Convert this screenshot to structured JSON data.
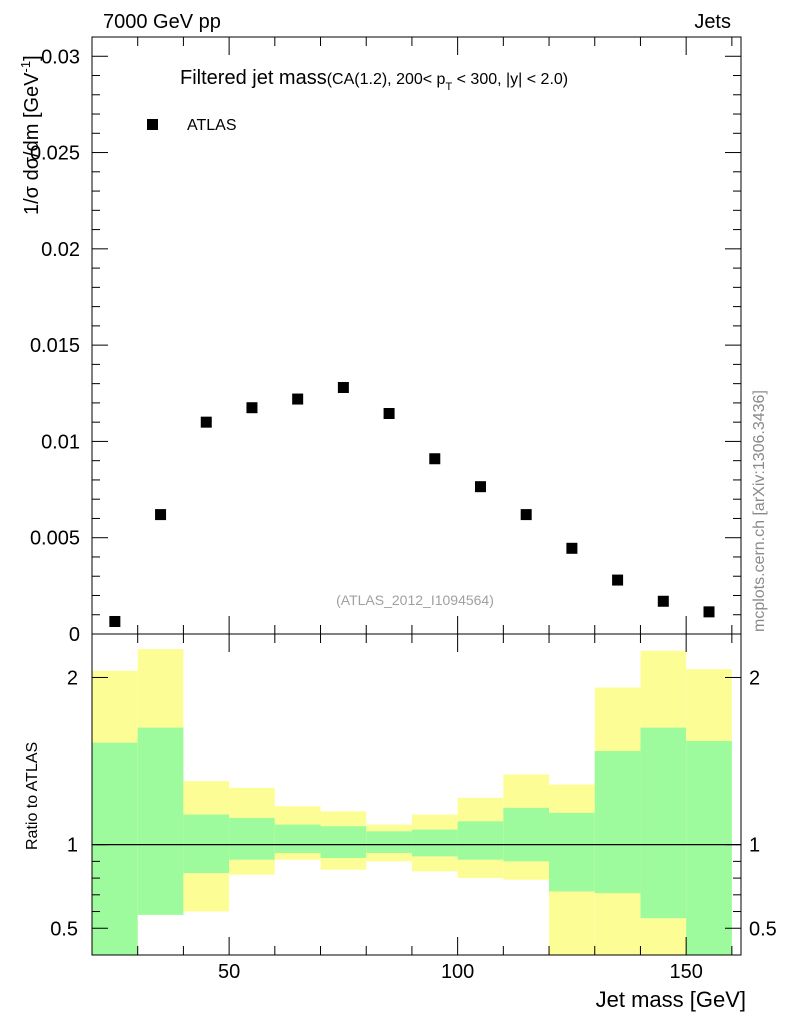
{
  "header": {
    "left": "7000 GeV pp",
    "right": "Jets"
  },
  "watermark": "mcplots.cern.ch [arXiv:1306.3436]",
  "analysis_id": "(ATLAS_2012_I1094564)",
  "colors": {
    "band_inner": "#9dfb9d",
    "band_outer": "#fdfd96",
    "marker": "#000000",
    "watermark": "#8a8a8a",
    "analysis": "#a0a0a0"
  },
  "chart_data": [
    {
      "type": "scatter",
      "title": "Filtered jet mass",
      "title_cuts": "(CA(1.2), 200< p_T < 300, |y| < 2.0)",
      "title_parts": {
        "main": "Filtered jet mass",
        "a": "(CA(1.2), 200< p",
        "sub": "T",
        "b": " < 300, |y| < 2.0)"
      },
      "ylabel": "1/σ dσ/dm [GeV",
      "ylabel_sup": "-1",
      "ylabel_end": "]",
      "xlim": [
        20,
        162
      ],
      "ylim": [
        0,
        0.031
      ],
      "yticks": [
        0,
        0.005,
        0.01,
        0.015,
        0.02,
        0.025,
        0.03
      ],
      "ytick_labels": [
        "0",
        "0.005",
        "0.01",
        "0.015",
        "0.02",
        "0.025",
        "0.03"
      ],
      "legend": [
        {
          "label": "ATLAS",
          "marker": "square"
        }
      ],
      "series": [
        {
          "name": "ATLAS",
          "x": [
            25,
            35,
            45,
            55,
            65,
            75,
            85,
            95,
            105,
            115,
            125,
            135,
            145,
            155
          ],
          "y": [
            0.00065,
            0.0062,
            0.011,
            0.01175,
            0.0122,
            0.0128,
            0.01145,
            0.0091,
            0.00765,
            0.0062,
            0.00445,
            0.0028,
            0.0017,
            0.00115
          ]
        }
      ]
    },
    {
      "type": "area",
      "ylabel": "Ratio to ATLAS",
      "xlabel": "Jet mass [GeV]",
      "xlim": [
        20,
        162
      ],
      "ylim": [
        0.34,
        2.26
      ],
      "xticks": [
        50,
        100,
        150
      ],
      "xtick_labels": [
        "50",
        "100",
        "150"
      ],
      "yticks": [
        0.5,
        1,
        2
      ],
      "ytick_labels": [
        "0.5",
        "1",
        "2"
      ],
      "reference_line": 1,
      "bins": [
        [
          20,
          30
        ],
        [
          30,
          40
        ],
        [
          40,
          50
        ],
        [
          50,
          60
        ],
        [
          60,
          70
        ],
        [
          70,
          80
        ],
        [
          80,
          90
        ],
        [
          90,
          100
        ],
        [
          100,
          110
        ],
        [
          110,
          120
        ],
        [
          120,
          130
        ],
        [
          130,
          140
        ],
        [
          140,
          150
        ],
        [
          150,
          160
        ]
      ],
      "series": [
        {
          "name": "inner band upper",
          "values": [
            1.61,
            1.7,
            1.18,
            1.16,
            1.12,
            1.11,
            1.08,
            1.09,
            1.14,
            1.22,
            1.19,
            1.56,
            1.7,
            1.62
          ]
        },
        {
          "name": "inner band lower",
          "values": [
            0.3,
            0.3,
            0.3,
            0.3,
            0.3,
            0.3,
            0.3,
            0.3,
            0.3,
            0.3,
            0.3,
            0.3,
            0.3,
            0.3
          ]
        },
        {
          "name": "outer band upper",
          "values": [
            2.04,
            2.17,
            1.38,
            1.34,
            1.23,
            1.2,
            1.12,
            1.18,
            1.28,
            1.42,
            1.36,
            1.94,
            2.16,
            2.05
          ]
        },
        {
          "name": "outer band lower",
          "values": [
            0.3,
            0.58,
            0.6,
            0.82,
            0.91,
            0.85,
            0.9,
            0.84,
            0.8,
            0.79,
            0.3,
            0.3,
            0.3,
            0.3
          ]
        },
        {
          "name": "white lower",
          "values": [
            0.3,
            0.3,
            0.6,
            0.82,
            0.91,
            0.85,
            0.9,
            0.84,
            0.8,
            0.79,
            0.3,
            0.3,
            0.3,
            0.3
          ]
        },
        {
          "name": "outer band yellow lower",
          "values": [
            0.3,
            0.58,
            0.83,
            0.91,
            0.95,
            0.92,
            0.95,
            0.93,
            0.91,
            0.9,
            0.72,
            0.71,
            0.56,
            0.3
          ]
        }
      ]
    }
  ]
}
